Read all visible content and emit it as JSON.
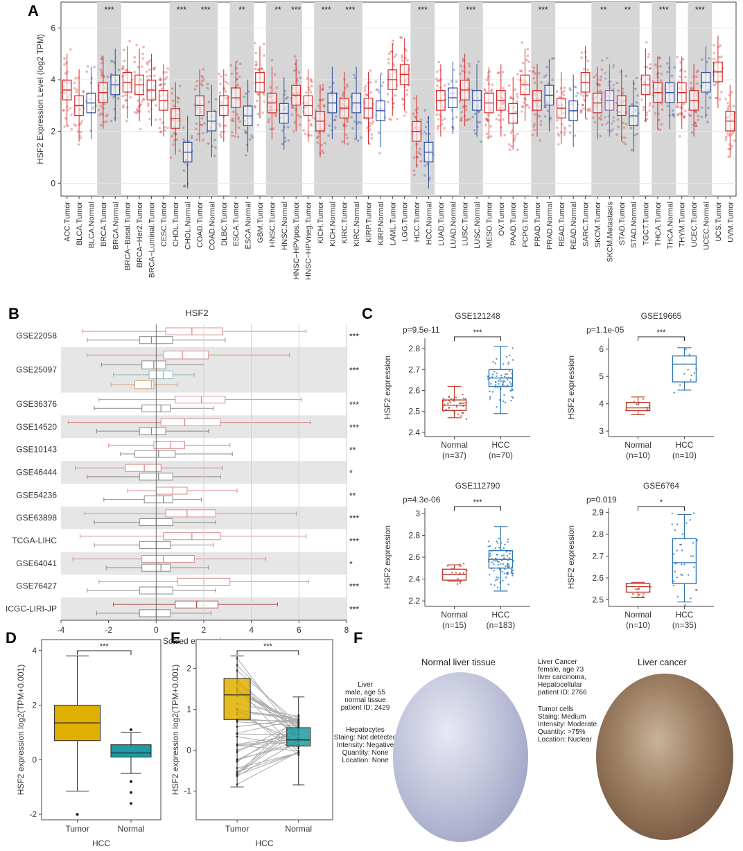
{
  "panel_labels": {
    "a": "A",
    "b": "B",
    "c": "C",
    "d": "D",
    "e": "E",
    "f": "F"
  },
  "chart_data": [
    {
      "id": "A",
      "type": "box",
      "ylabel": "HSF2 Expression Level (log2 TPM)",
      "ylim": [
        -0.5,
        7
      ],
      "yticks": [
        0,
        2,
        4,
        6
      ],
      "shaded_groups": [
        "BRCA",
        "CHOL",
        "COAD",
        "ESCA",
        "HNSC",
        "HNSC-HPVpos",
        "KICH",
        "KIRC",
        "HCC",
        "LUSC",
        "PRAD",
        "SKCM",
        "STAD",
        "THCA",
        "UCEC"
      ],
      "categories": [
        "ACC.Tumor",
        "BLCA.Tumor",
        "BLCA.Normal",
        "BRCA.Tumor",
        "BRCA.Normal",
        "BRCA−Basal.Tumor",
        "BRCA−Her2.Tumor",
        "BRCA−Luminal.Tumor",
        "CESC.Tumor",
        "CHOL.Tumor",
        "CHOL.Normal",
        "COAD.Tumor",
        "COAD.Normal",
        "DLBC.Tumor",
        "ESCA.Tumor",
        "ESCA.Normal",
        "GBM.Tumor",
        "HNSC.Tumor",
        "HNSC.Normal",
        "HNSC−HPVpos.Tumor",
        "HNSC−HPVneg.Tumor",
        "KICH.Tumor",
        "KICH.Normal",
        "KIRC.Tumor",
        "KIRC.Normal",
        "KIRP.Tumor",
        "KIRP.Normal",
        "LAML.Tumor",
        "LGG.Tumor",
        "HCC.Tumor",
        "HCC.Normal",
        "LUAD.Tumor",
        "LUAD.Normal",
        "LUSC.Tumor",
        "LUSC.Normal",
        "MESO.Tumor",
        "OV.Tumor",
        "PAAD.Tumor",
        "PCPG.Tumor",
        "PRAD.Tumor",
        "PRAD.Normal",
        "READ.Tumor",
        "READ.Normal",
        "SARC.Tumor",
        "SKCM.Tumor",
        "SKCM.Metastasis",
        "STAD.Tumor",
        "STAD.Normal",
        "TGCT.Tumor",
        "THCA.Tumor",
        "THCA.Normal",
        "THYM.Tumor",
        "UCEC.Tumor",
        "UCEC.Normal",
        "UCS.Tumor",
        "UVM.Tumor"
      ],
      "medians": [
        3.6,
        3.0,
        3.1,
        3.5,
        3.8,
        3.9,
        3.8,
        3.6,
        3.2,
        2.5,
        1.2,
        3.0,
        2.4,
        3.0,
        3.3,
        2.6,
        3.9,
        3.1,
        2.7,
        3.4,
        3.0,
        2.4,
        3.1,
        2.9,
        3.1,
        2.9,
        2.8,
        4.0,
        4.2,
        2.0,
        1.2,
        3.2,
        3.3,
        3.6,
        3.2,
        3.1,
        3.2,
        2.7,
        3.8,
        3.2,
        3.4,
        2.9,
        2.8,
        3.9,
        3.1,
        3.2,
        3.0,
        2.6,
        3.8,
        3.5,
        3.5,
        3.5,
        3.2,
        3.9,
        4.3,
        2.4
      ],
      "significance": [
        {
          "group": "BRCA",
          "mark": "***"
        },
        {
          "group": "CHOL",
          "mark": "***"
        },
        {
          "group": "COAD",
          "mark": "***"
        },
        {
          "group": "ESCA",
          "mark": "**"
        },
        {
          "group": "HNSC",
          "mark": "**"
        },
        {
          "group": "HNSC-HPVpos",
          "mark": "***"
        },
        {
          "group": "KICH",
          "mark": "***"
        },
        {
          "group": "KIRC",
          "mark": "***"
        },
        {
          "group": "HCC",
          "mark": "***"
        },
        {
          "group": "LUSC",
          "mark": "***"
        },
        {
          "group": "PRAD",
          "mark": "***"
        },
        {
          "group": "SKCM",
          "mark": "**"
        },
        {
          "group": "STAD",
          "mark": "**"
        },
        {
          "group": "THCA",
          "mark": "***"
        },
        {
          "group": "UCEC",
          "mark": "***"
        }
      ]
    },
    {
      "id": "B",
      "type": "box",
      "title": "HSF2",
      "xlabel": "Scaled expression",
      "xlim": [
        -4,
        8
      ],
      "xticks": [
        -4,
        -2,
        0,
        2,
        4,
        6,
        8
      ],
      "datasets": [
        {
          "name": "GSE22058",
          "sig": "***",
          "boxes": [
            {
              "q": [
                -3.1,
                0.4,
                1.5,
                2.8,
                6.3
              ],
              "color": "#d98c8c"
            },
            {
              "q": [
                -2.9,
                -0.7,
                -0.2,
                0.7,
                2.9
              ],
              "color": "#888888"
            }
          ]
        },
        {
          "name": "GSE25097",
          "sig": "***",
          "boxes": [
            {
              "q": [
                -2.9,
                0.3,
                1.1,
                2.2,
                5.6
              ],
              "color": "#d98c8c"
            },
            {
              "q": [
                -2.3,
                -0.6,
                -0.1,
                0.4,
                2.0
              ],
              "color": "#888888"
            },
            {
              "q": [
                -1.8,
                -0.3,
                0.3,
                0.7,
                1.6
              ],
              "color": "#8fb8b8"
            },
            {
              "q": [
                -1.9,
                -0.9,
                -0.2,
                -0.1,
                0.9
              ],
              "color": "#d9a070"
            }
          ]
        },
        {
          "name": "GSE36376",
          "sig": "***",
          "boxes": [
            {
              "q": [
                -2.4,
                0.8,
                1.9,
                2.9,
                6.1
              ],
              "color": "#d98c8c"
            },
            {
              "q": [
                -2.6,
                -0.6,
                0.2,
                0.6,
                2.4
              ],
              "color": "#888888"
            }
          ]
        },
        {
          "name": "GSE14520",
          "sig": "***",
          "boxes": [
            {
              "q": [
                -3.7,
                0.2,
                1.2,
                2.7,
                6.5
              ],
              "color": "#d98c8c"
            },
            {
              "q": [
                -2.5,
                -0.7,
                -0.2,
                0.4,
                2.2
              ],
              "color": "#888888"
            }
          ]
        },
        {
          "name": "GSE10143",
          "sig": "**",
          "boxes": [
            {
              "q": [
                -2.0,
                -0.1,
                0.6,
                1.2,
                3.1
              ],
              "color": "#d98c8c"
            },
            {
              "q": [
                -1.5,
                -0.9,
                0.1,
                0.8,
                3.2
              ],
              "color": "#888888"
            }
          ]
        },
        {
          "name": "GSE46444",
          "sig": "*",
          "boxes": [
            {
              "q": [
                -3.4,
                -1.3,
                -0.5,
                0.2,
                2.8
              ],
              "color": "#d98c8c"
            },
            {
              "q": [
                -2.9,
                -0.7,
                0.1,
                0.7,
                2.7
              ],
              "color": "#888888"
            }
          ]
        },
        {
          "name": "GSE54236",
          "sig": "**",
          "boxes": [
            {
              "q": [
                -1.2,
                0.0,
                0.7,
                1.3,
                3.4
              ],
              "color": "#d98c8c"
            },
            {
              "q": [
                -2.2,
                -0.5,
                0.3,
                0.7,
                1.9
              ],
              "color": "#888888"
            }
          ]
        },
        {
          "name": "GSE63898",
          "sig": "***",
          "boxes": [
            {
              "q": [
                -3.0,
                0.4,
                1.3,
                2.5,
                5.9
              ],
              "color": "#d98c8c"
            },
            {
              "q": [
                -2.6,
                -0.7,
                0.0,
                0.7,
                2.5
              ],
              "color": "#888888"
            }
          ]
        },
        {
          "name": "TCGA-LIHC",
          "sig": "***",
          "boxes": [
            {
              "q": [
                -3.2,
                0.3,
                1.5,
                2.7,
                6.3
              ],
              "color": "#d98c8c"
            },
            {
              "q": [
                -2.6,
                -0.7,
                0.0,
                0.6,
                2.4
              ],
              "color": "#888888"
            }
          ]
        },
        {
          "name": "GSE64041",
          "sig": "*",
          "boxes": [
            {
              "q": [
                -3.5,
                -0.6,
                0.3,
                1.6,
                4.6
              ],
              "color": "#d98c8c"
            },
            {
              "q": [
                -2.1,
                -0.6,
                0.2,
                0.6,
                2.2
              ],
              "color": "#888888"
            }
          ]
        },
        {
          "name": "GSE76427",
          "sig": "***",
          "boxes": [
            {
              "q": [
                -2.4,
                0.9,
                2.0,
                3.1,
                6.4
              ],
              "color": "#d98c8c"
            },
            {
              "q": [
                -2.9,
                -0.7,
                0.0,
                0.7,
                2.5
              ],
              "color": "#888888"
            }
          ]
        },
        {
          "name": "ICGC-LIRI-JP",
          "sig": "***",
          "boxes": [
            {
              "q": [
                -1.8,
                0.8,
                1.7,
                2.6,
                5.1
              ],
              "color": "#b05050"
            },
            {
              "q": [
                -2.5,
                -0.7,
                0.0,
                0.6,
                2.3
              ],
              "color": "#888888"
            }
          ]
        }
      ]
    },
    {
      "id": "C1",
      "type": "box",
      "title": "GSE121248",
      "pvalue": "p=9.5e-11",
      "sig": "***",
      "ylabel": "HSF2 expression",
      "ylim": [
        2.38,
        2.85
      ],
      "yticks": [
        2.4,
        2.5,
        2.6,
        2.7,
        2.8
      ],
      "groups": [
        {
          "label": "Normal",
          "n": "(n=37)",
          "color": "#c0392b",
          "q": [
            2.47,
            2.505,
            2.53,
            2.555,
            2.62
          ]
        },
        {
          "label": "HCC",
          "n": "(n=70)",
          "color": "#2e75b6",
          "q": [
            2.49,
            2.62,
            2.66,
            2.7,
            2.81
          ]
        }
      ]
    },
    {
      "id": "C2",
      "type": "box",
      "title": "GSE19665",
      "pvalue": "p=1.1e-05",
      "sig": "***",
      "ylabel": "HSF2 expression",
      "ylim": [
        2.8,
        6.4
      ],
      "yticks": [
        3,
        4,
        5,
        6
      ],
      "groups": [
        {
          "label": "Normal",
          "n": "(n=10)",
          "color": "#c0392b",
          "q": [
            3.6,
            3.75,
            3.85,
            4.05,
            4.25
          ]
        },
        {
          "label": "HCC",
          "n": "(n=10)",
          "color": "#2e75b6",
          "q": [
            4.5,
            4.8,
            5.45,
            5.75,
            6.05
          ]
        }
      ]
    },
    {
      "id": "C3",
      "type": "box",
      "title": "GSE112790",
      "pvalue": "p=4.3e-06",
      "sig": "***",
      "ylabel": "HSF2 expression",
      "ylim": [
        2.15,
        3.05
      ],
      "yticks": [
        2.2,
        2.4,
        2.6,
        2.8,
        3.0
      ],
      "groups": [
        {
          "label": "Normal",
          "n": "(n=15)",
          "color": "#c0392b",
          "q": [
            2.38,
            2.39,
            2.44,
            2.49,
            2.53
          ]
        },
        {
          "label": "HCC",
          "n": "(n=183)",
          "color": "#2e75b6",
          "q": [
            2.29,
            2.5,
            2.58,
            2.66,
            2.88
          ]
        }
      ]
    },
    {
      "id": "C4",
      "type": "box",
      "title": "GSE6764",
      "pvalue": "p=0.019",
      "sig": "*",
      "ylabel": "HSF2 expression",
      "ylim": [
        2.47,
        2.92
      ],
      "yticks": [
        2.5,
        2.6,
        2.7,
        2.8,
        2.9
      ],
      "groups": [
        {
          "label": "Normal",
          "n": "(n=10)",
          "color": "#c0392b",
          "q": [
            2.51,
            2.535,
            2.56,
            2.575,
            2.58
          ]
        },
        {
          "label": "HCC",
          "n": "(n=35)",
          "color": "#2e75b6",
          "q": [
            2.49,
            2.575,
            2.67,
            2.78,
            2.89
          ]
        }
      ]
    },
    {
      "id": "D",
      "type": "box",
      "ylabel": "HSF2 expression log2(TPM+0.001)",
      "xlabel": "HCC",
      "sig": "***",
      "ylim": [
        -2.2,
        4.4
      ],
      "yticks": [
        -2,
        0,
        2,
        4
      ],
      "groups": [
        {
          "label": "Tumor",
          "color": "#e0b000",
          "q": [
            -1.15,
            0.7,
            1.35,
            2.0,
            3.8
          ],
          "outliers": [
            -2.0
          ]
        },
        {
          "label": "Normal",
          "color": "#1f9aa0",
          "q": [
            -0.5,
            0.1,
            0.25,
            0.55,
            1.0
          ],
          "outliers": [
            1.1,
            -0.8,
            -1.2,
            -1.6
          ]
        }
      ]
    },
    {
      "id": "E",
      "type": "box",
      "ylabel": "HSF2 expression log2(TPM+0.001)",
      "xlabel": "HCC",
      "sig": "***",
      "ylim": [
        -1.7,
        2.7
      ],
      "yticks": [
        -1,
        0,
        1,
        2
      ],
      "groups": [
        {
          "label": "Tumor",
          "color": "#e0b000",
          "q": [
            -0.9,
            0.75,
            1.35,
            1.75,
            2.3
          ]
        },
        {
          "label": "Normal",
          "color": "#1f9aa0",
          "q": [
            -0.85,
            0.1,
            0.25,
            0.55,
            1.3
          ]
        }
      ]
    }
  ],
  "panel_f": {
    "normal": {
      "title": "Normal liver tissue",
      "info": "Liver\nmale, age 55\nnormal tissue\npatient ID: 2429",
      "cell": "Hepatocytes\nStaing: Not detected\nIntensity: Negative\nQuantity: None\nLocation: None"
    },
    "cancer": {
      "title": "Liver cancer",
      "info": "Liver Cancer\nfemale, age 73\nliver carcinoma,\nHepatocellular\npatient ID: 2766",
      "cell": "Tumor cells\nStaing: Medium\nIntensity: Moderate\nQuantity: >75%\nLocation: Nuclear"
    }
  }
}
